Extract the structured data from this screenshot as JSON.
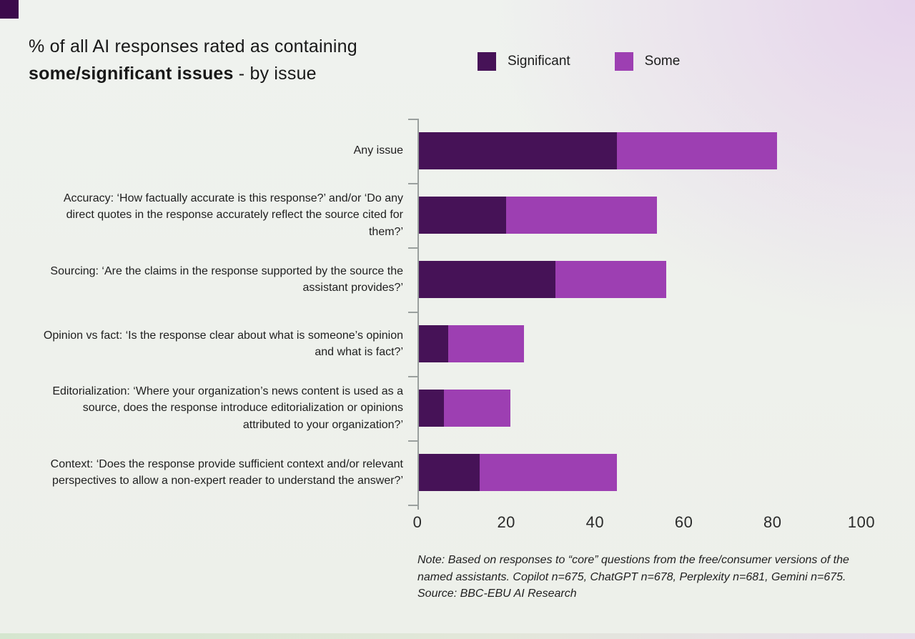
{
  "title": {
    "line1": "% of all AI responses rated as containing",
    "line2_bold": "some/significant issues",
    "line2_suffix": " - by issue"
  },
  "legend": {
    "items": [
      {
        "label": "Significant"
      },
      {
        "label": "Some"
      }
    ]
  },
  "chart_data": {
    "type": "bar",
    "orientation": "horizontal",
    "stacked": true,
    "title": "% of all AI responses rated as containing some/significant issues - by issue",
    "categories": [
      "Any issue",
      "Accuracy: ‘How factually accurate is this response?’ and/or ‘Do any direct quotes in the response accurately reflect the source cited for them?’",
      "Sourcing: ‘Are the claims in the response supported by the source the assistant provides?’",
      "Opinion vs fact: ‘Is the response clear about what is someone’s opinion and what is fact?’",
      "Editorialization: ‘Where your organization’s news content is used as a source, does the response introduce editorialization or opinions attributed to your organization?’",
      "Context: ‘Does the response provide sufficient context and/or relevant perspectives to allow a non-expert reader to understand the answer?’"
    ],
    "series": [
      {
        "name": "Significant",
        "color": "#461257",
        "values": [
          45,
          20,
          31,
          7,
          6,
          14
        ]
      },
      {
        "name": "Some",
        "color": "#9d3fb2",
        "values": [
          36,
          34,
          25,
          17,
          15,
          31
        ]
      }
    ],
    "totals": [
      81,
      54,
      56,
      24,
      21,
      45
    ],
    "xlim": [
      0,
      100
    ],
    "xticks": [
      0,
      20,
      40,
      60,
      80,
      100
    ],
    "grid": false,
    "legend_position": "top"
  },
  "note": {
    "text": "Note: Based on responses to “core” questions from the free/consumer versions of the named assistants. Copilot n=675, ChatGPT n=678, Perplexity n=681, Gemini n=675. Source: BBC-EBU AI Research"
  }
}
